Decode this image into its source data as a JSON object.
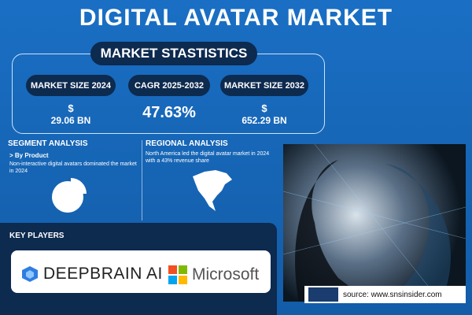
{
  "header": {
    "title": "DIGITAL AVATAR MARKET",
    "subtitle": "MARKET STASTISTICS"
  },
  "stats": [
    {
      "label": "MARKET SIZE 2024",
      "symbol": "$",
      "value": "29.06 BN"
    },
    {
      "label": "CAGR 2025-2032",
      "value": "47.63%"
    },
    {
      "label": "MARKET SIZE 2032",
      "symbol": "$",
      "value": "652.29 BN"
    }
  ],
  "segment": {
    "title": "SEGMENT ANALYSIS",
    "subtitle": "> By Product",
    "text": "Non-interactive digital avatars dominated the market in 2024"
  },
  "regional": {
    "title": "REGIONAL ANALYSIS",
    "text": "North America led the digital avatar market in 2024 with a 43% revenue share"
  },
  "key_players": {
    "title": "KEY PLAYERS",
    "players": [
      "DEEPBRAIN AI",
      "Microsoft"
    ]
  },
  "source": "source: www.snsinsider.com"
}
